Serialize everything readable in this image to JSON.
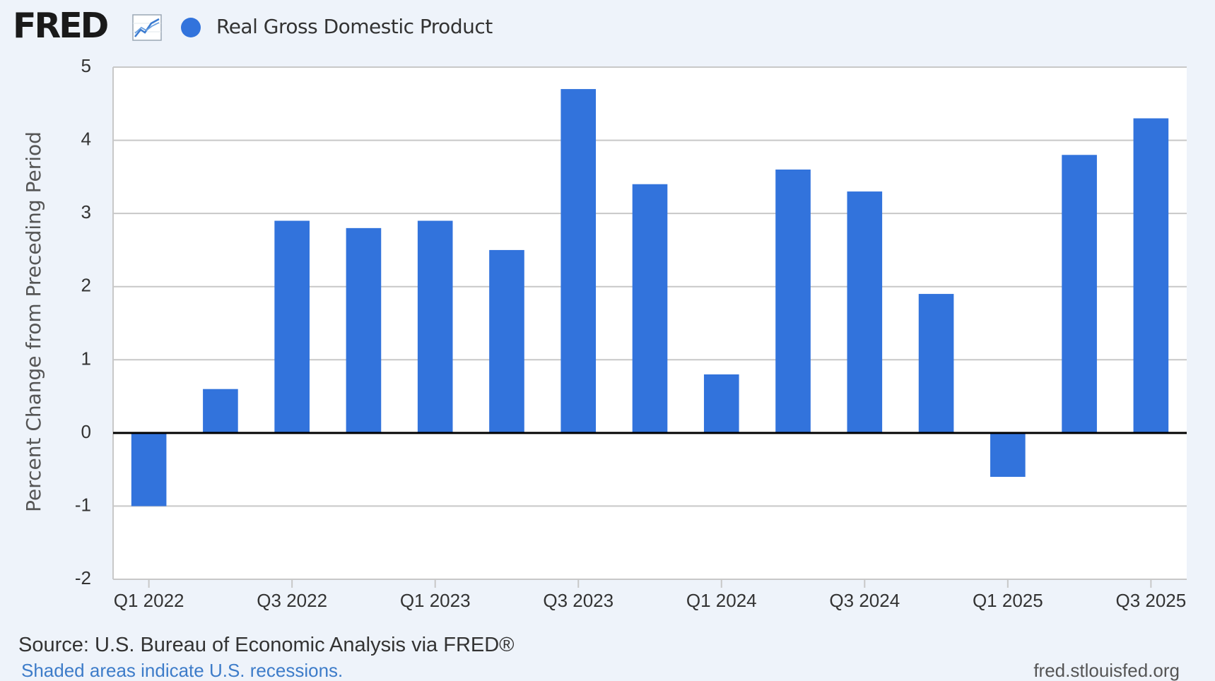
{
  "header": {
    "logo_text": "FRED",
    "logo_icon": "line-chart-icon",
    "legend_label": "Real Gross Domestic Product"
  },
  "colors": {
    "bar": "#3273dc",
    "background": "#eef3fa",
    "plot_background": "#ffffff",
    "grid": "#c8c8c8",
    "zero_line": "#000000",
    "text": "#333333"
  },
  "chart_data": {
    "type": "bar",
    "categories": [
      "Q1 2022",
      "Q2 2022",
      "Q3 2022",
      "Q4 2022",
      "Q1 2023",
      "Q2 2023",
      "Q3 2023",
      "Q4 2023",
      "Q1 2024",
      "Q2 2024",
      "Q3 2024",
      "Q4 2024",
      "Q1 2025",
      "Q2 2025",
      "Q3 2025"
    ],
    "series": [
      {
        "name": "Real Gross Domestic Product",
        "values": [
          -1.0,
          0.6,
          2.9,
          2.8,
          2.9,
          2.5,
          4.7,
          3.4,
          0.8,
          3.6,
          3.3,
          1.9,
          -0.6,
          3.8,
          4.3
        ]
      }
    ],
    "xtick_labels": [
      "Q1 2022",
      "Q3 2022",
      "Q1 2023",
      "Q3 2023",
      "Q1 2024",
      "Q3 2024",
      "Q1 2025",
      "Q3 2025"
    ],
    "ylabel": "Percent Change from Preceding Period",
    "xlabel": "",
    "ylim": [
      -2,
      5
    ],
    "yticks": [
      -2,
      -1,
      0,
      1,
      2,
      3,
      4,
      5
    ],
    "grid": true,
    "legend_position": "top-left"
  },
  "footer": {
    "source": "Source: U.S. Bureau of Economic Analysis via FRED®",
    "shading_note": "Shaded areas indicate U.S. recessions.",
    "brand": "fred.stlouisfed.org"
  }
}
